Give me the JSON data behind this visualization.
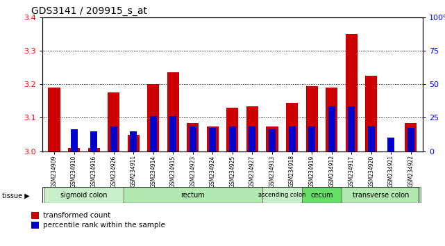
{
  "title": "GDS3141 / 209915_s_at",
  "samples": [
    "GSM234909",
    "GSM234910",
    "GSM234916",
    "GSM234926",
    "GSM234911",
    "GSM234914",
    "GSM234915",
    "GSM234923",
    "GSM234924",
    "GSM234925",
    "GSM234927",
    "GSM234913",
    "GSM234918",
    "GSM234919",
    "GSM234912",
    "GSM234917",
    "GSM234920",
    "GSM234921",
    "GSM234922"
  ],
  "red_values": [
    3.19,
    3.01,
    3.01,
    3.175,
    3.05,
    3.2,
    3.235,
    3.085,
    3.075,
    3.13,
    3.135,
    3.075,
    3.145,
    3.195,
    3.19,
    3.35,
    3.225,
    3.0,
    3.085
  ],
  "blue_values": [
    3.0,
    3.065,
    3.06,
    3.075,
    3.06,
    3.105,
    3.105,
    3.075,
    3.07,
    3.075,
    3.075,
    3.065,
    3.075,
    3.075,
    3.135,
    3.135,
    3.075,
    3.04,
    3.07
  ],
  "ylim_left": [
    3.0,
    3.4
  ],
  "ylim_right": [
    0,
    100
  ],
  "yticks_left": [
    3.0,
    3.1,
    3.2,
    3.3,
    3.4
  ],
  "yticks_right": [
    0,
    25,
    50,
    75,
    100
  ],
  "grid_values": [
    3.1,
    3.2,
    3.3
  ],
  "tissue_groups": [
    {
      "label": "sigmoid colon",
      "start": 0,
      "end": 4,
      "color": "#c8f0c8"
    },
    {
      "label": "rectum",
      "start": 4,
      "end": 11,
      "color": "#b0e8b0"
    },
    {
      "label": "ascending colon",
      "start": 11,
      "end": 13,
      "color": "#c8f0c8"
    },
    {
      "label": "cecum",
      "start": 13,
      "end": 15,
      "color": "#66dd66"
    },
    {
      "label": "transverse colon",
      "start": 15,
      "end": 19,
      "color": "#b0e8b0"
    }
  ],
  "bar_color": "#cc0000",
  "blue_color": "#0000cc",
  "bar_width": 0.6,
  "blue_bar_width": 0.35,
  "base_value": 3.0,
  "background_color": "#ffffff",
  "title_fontsize": 10,
  "legend_items": [
    "transformed count",
    "percentile rank within the sample"
  ]
}
